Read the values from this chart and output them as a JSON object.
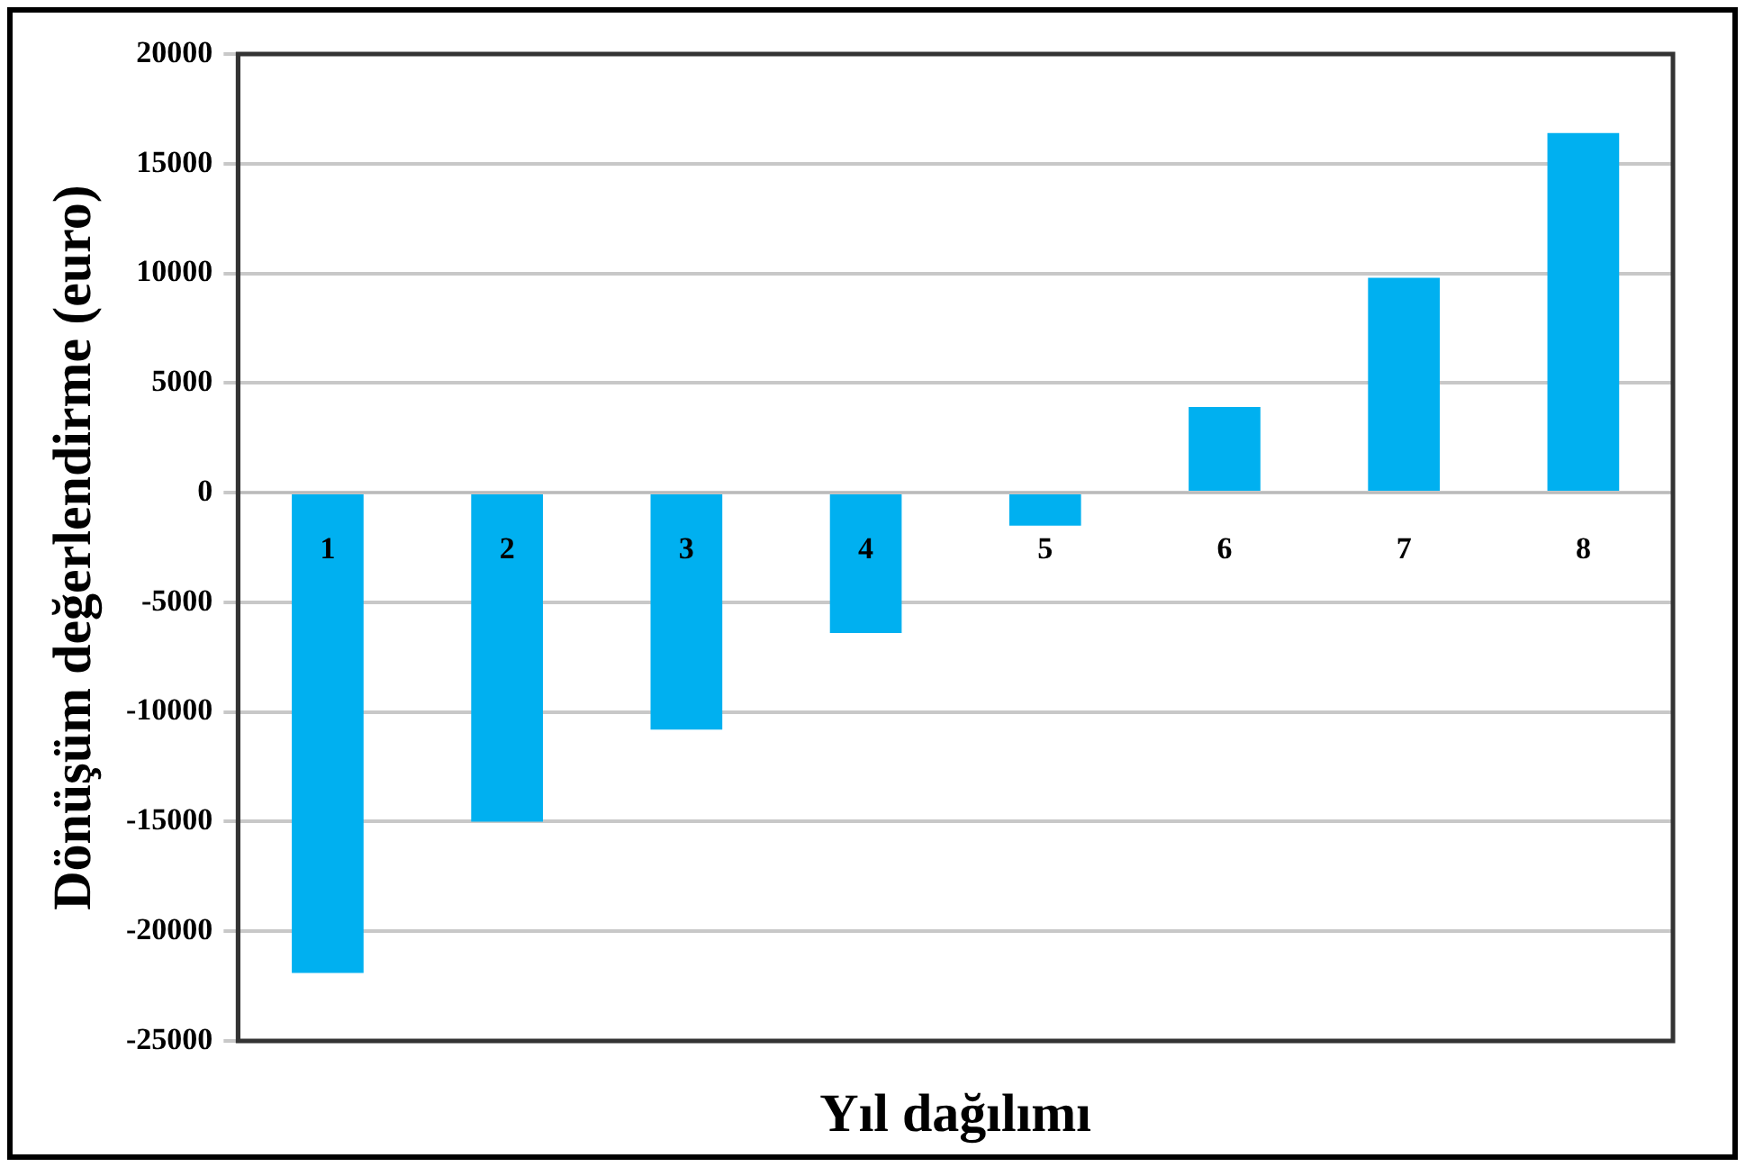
{
  "chart_data": {
    "type": "bar",
    "xlabel": "Yıl dağılımı",
    "ylabel": "Dönüşüm değerlendirme (euro)",
    "categories": [
      "1",
      "2",
      "3",
      "4",
      "5",
      "6",
      "7",
      "8"
    ],
    "values": [
      -21900,
      -15000,
      -10800,
      -6400,
      -1500,
      3900,
      9800,
      16400
    ],
    "color": "#00b0f0",
    "ylim": [
      -25000,
      20000
    ],
    "yticks": [
      -25000,
      -20000,
      -15000,
      -10000,
      -5000,
      0,
      5000,
      10000,
      15000,
      20000
    ],
    "grid": "y"
  }
}
